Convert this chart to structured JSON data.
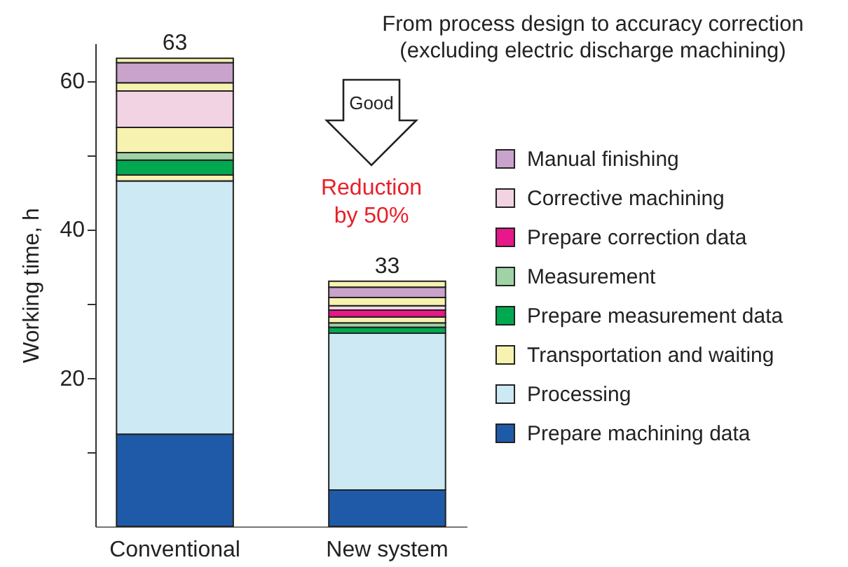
{
  "chart_data": {
    "type": "bar",
    "stacked": true,
    "categories": [
      "Conventional",
      "New system"
    ],
    "ylabel": "Working time, h",
    "ylim": [
      0,
      65
    ],
    "yticks": [
      {
        "value": 10,
        "label": null
      },
      20,
      {
        "value": 30,
        "label": null
      },
      40,
      {
        "value": 50,
        "label": null
      },
      60
    ],
    "totals": [
      "63",
      "33"
    ],
    "grid": false,
    "legend": "right",
    "annotations": [
      "From process design to accuracy correction\n(excluding electric discharge machining)",
      "Good",
      "Reduction\nby 50%"
    ],
    "series": [
      {
        "name": "Prepare machining data",
        "color": "#1f5aa8",
        "values": [
          12.4,
          4.9
        ]
      },
      {
        "name": "Processing",
        "color": "#cce9f4",
        "values": [
          34.1,
          21.1
        ]
      },
      {
        "name": "Transportation and waiting",
        "color": "#f7f2b0",
        "values": [
          0.8,
          null
        ]
      },
      {
        "name": "Prepare measurement data",
        "color": "#00a94f",
        "values": [
          2.0,
          0.8
        ]
      },
      {
        "name": "Measurement",
        "color": "#9fd3a5",
        "values": [
          1.0,
          0.6
        ]
      },
      {
        "color": "#f7f2b0",
        "values": [
          3.4,
          0.8
        ]
      },
      {
        "name": "Prepare correction data",
        "color": "#e8178a",
        "values": [
          null,
          0.9
        ]
      },
      {
        "name": "Corrective machining",
        "color": "#f2d3e4",
        "values": [
          4.9,
          0.6
        ]
      },
      {
        "color": "#f7f2b0",
        "values": [
          1.1,
          1.1
        ]
      },
      {
        "name": "Manual finishing",
        "color": "#c9a3cc",
        "values": [
          2.7,
          1.4
        ]
      },
      {
        "color": "#f7f2b0",
        "values": [
          0.6,
          0.8
        ]
      }
    ]
  }
}
